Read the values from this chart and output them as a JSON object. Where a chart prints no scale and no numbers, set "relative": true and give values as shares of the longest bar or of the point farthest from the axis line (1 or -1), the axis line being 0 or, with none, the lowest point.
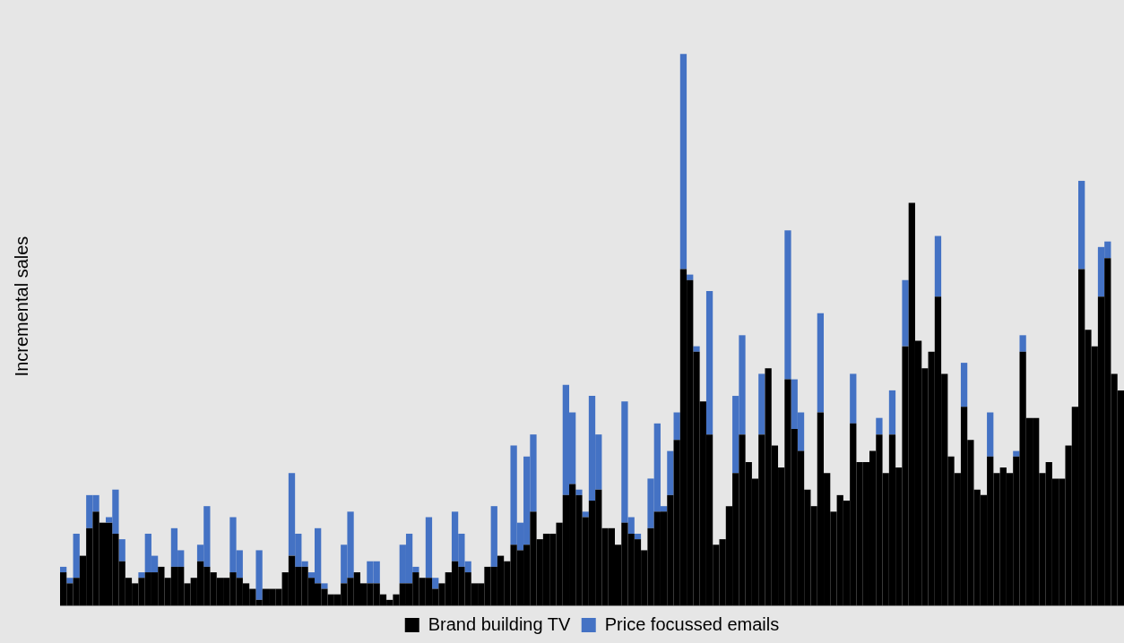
{
  "chart_data": {
    "type": "bar",
    "stacked": true,
    "relative": true,
    "ylabel": "Incremental sales",
    "legend": "bottom",
    "grid": false,
    "categories": [
      null,
      null,
      null,
      null,
      null,
      null,
      null,
      null,
      null,
      null,
      null,
      null,
      null,
      null,
      null,
      null,
      null,
      null,
      null,
      null,
      null,
      null,
      null,
      null,
      null,
      null,
      null,
      null,
      null,
      null,
      null,
      null,
      null,
      null,
      null,
      null,
      null,
      null,
      null,
      null,
      null,
      null,
      null,
      null,
      null,
      null,
      null,
      null,
      null,
      null,
      null,
      null,
      null,
      null,
      null,
      null,
      null,
      null,
      null,
      null,
      null,
      null,
      null,
      null,
      null,
      null,
      null,
      null,
      null,
      null,
      null,
      null,
      null,
      null,
      null,
      null,
      null,
      null,
      null,
      null,
      null,
      null,
      null,
      null,
      null,
      null,
      null,
      null,
      null,
      null,
      null,
      null,
      null,
      null,
      null,
      null,
      null,
      null,
      null,
      null,
      null,
      null,
      null,
      null,
      null,
      null,
      null,
      null,
      null,
      null,
      null,
      null,
      null,
      null,
      null,
      null,
      null,
      null,
      null,
      null,
      null,
      null,
      null,
      null,
      null,
      null,
      null,
      null,
      null,
      null,
      null,
      null,
      null,
      null,
      null,
      null,
      null,
      null,
      null,
      null,
      null,
      null,
      null,
      null,
      null,
      null,
      null,
      null,
      null,
      null,
      null,
      null,
      null,
      null,
      null,
      null,
      null,
      null,
      null,
      null,
      null,
      null,
      null
    ],
    "series": [
      {
        "name": "Brand building TV",
        "color": "#000000",
        "values": [
          0.06,
          0.04,
          0.05,
          0.09,
          0.14,
          0.17,
          0.15,
          0.15,
          0.13,
          0.08,
          0.05,
          0.04,
          0.05,
          0.06,
          0.06,
          0.07,
          0.05,
          0.07,
          0.07,
          0.04,
          0.05,
          0.08,
          0.07,
          0.06,
          0.05,
          0.05,
          0.06,
          0.05,
          0.04,
          0.03,
          0.01,
          0.03,
          0.03,
          0.03,
          0.06,
          0.09,
          0.07,
          0.07,
          0.05,
          0.04,
          0.03,
          0.02,
          0.02,
          0.04,
          0.05,
          0.06,
          0.04,
          0.04,
          0.04,
          0.02,
          0.01,
          0.02,
          0.04,
          0.04,
          0.06,
          0.05,
          0.05,
          0.03,
          0.04,
          0.06,
          0.08,
          0.07,
          0.06,
          0.04,
          0.04,
          0.07,
          0.07,
          0.09,
          0.08,
          0.11,
          0.1,
          0.11,
          0.17,
          0.12,
          0.13,
          0.13,
          0.15,
          0.2,
          0.22,
          0.2,
          0.16,
          0.19,
          0.21,
          0.14,
          0.14,
          0.11,
          0.15,
          0.13,
          0.12,
          0.1,
          0.14,
          0.17,
          0.17,
          0.2,
          0.3,
          0.61,
          0.59,
          0.46,
          0.37,
          0.31,
          0.11,
          0.12,
          0.18,
          0.24,
          0.31,
          0.26,
          0.23,
          0.31,
          0.43,
          0.29,
          0.25,
          0.41,
          0.32,
          0.28,
          0.21,
          0.18,
          0.35,
          0.24,
          0.17,
          0.2,
          0.19,
          0.33,
          0.26,
          0.26,
          0.28,
          0.31,
          0.24,
          0.31,
          0.25,
          0.47,
          0.73,
          0.48,
          0.43,
          0.46,
          0.56,
          0.42,
          0.27,
          0.24,
          0.36,
          0.3,
          0.21,
          0.2,
          0.27,
          0.24,
          0.25,
          0.24,
          0.27,
          0.46,
          0.34,
          0.34,
          0.24,
          0.26,
          0.23,
          0.23,
          0.29,
          0.36,
          0.61,
          0.5,
          0.47,
          0.56,
          0.63,
          0.42,
          0.39
        ]
      },
      {
        "name": "Price focussed emails",
        "color": "#4472c4",
        "values": [
          0.01,
          0.01,
          0.08,
          0,
          0.06,
          0.03,
          0,
          0.01,
          0.08,
          0.04,
          0,
          0,
          0.01,
          0.07,
          0.03,
          0,
          0,
          0.07,
          0.03,
          0,
          0,
          0.03,
          0.11,
          0,
          0,
          0,
          0.1,
          0.05,
          0,
          0,
          0.09,
          0,
          0,
          0,
          0,
          0.15,
          0.06,
          0.01,
          0.01,
          0.1,
          0.01,
          0,
          0,
          0.07,
          0.12,
          0,
          0,
          0.04,
          0.04,
          0,
          0,
          0,
          0.07,
          0.09,
          0.01,
          0,
          0.11,
          0.02,
          0,
          0,
          0.09,
          0.06,
          0.02,
          0,
          0,
          0,
          0.11,
          0,
          0,
          0.18,
          0.05,
          0.16,
          0.14,
          0,
          0,
          0,
          0,
          0.2,
          0.13,
          0.01,
          0.01,
          0.19,
          0.1,
          0,
          0,
          0,
          0.22,
          0.03,
          0.01,
          0,
          0.09,
          0.16,
          0.01,
          0.08,
          0.05,
          0.39,
          0.01,
          0.01,
          0,
          0.26,
          0,
          0,
          0,
          0.14,
          0.18,
          0,
          0,
          0.11,
          0,
          0,
          0,
          0.27,
          0.09,
          0.07,
          0,
          0,
          0.18,
          0,
          0,
          0,
          0,
          0.09,
          0,
          0,
          0,
          0.03,
          0,
          0.08,
          0,
          0.12,
          0,
          0,
          0,
          0,
          0.11,
          0,
          0,
          0,
          0.08,
          0,
          0,
          0,
          0.08,
          0,
          0,
          0,
          0.01,
          0.03,
          0,
          0,
          0,
          0,
          0,
          0,
          0,
          0,
          0.16,
          0,
          0,
          0.09,
          0.03,
          0,
          0
        ]
      }
    ]
  }
}
